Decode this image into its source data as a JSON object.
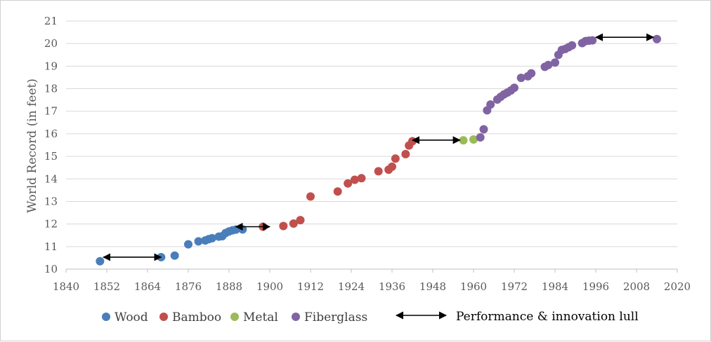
{
  "chart_data": {
    "type": "scatter",
    "title": "",
    "xlabel": "",
    "ylabel": "World Record (in feet)",
    "xlim": [
      1840,
      2020
    ],
    "ylim": [
      10,
      21
    ],
    "xticks": [
      "1840",
      "1852",
      "1864",
      "1876",
      "1888",
      "1900",
      "1912",
      "1924",
      "1936",
      "1948",
      "1960",
      "1972",
      "1984",
      "1996",
      "2008",
      "2020"
    ],
    "yticks": [
      "10",
      "11",
      "12",
      "13",
      "14",
      "15",
      "16",
      "17",
      "18",
      "19",
      "20",
      "21"
    ],
    "grid": "horizontal",
    "legend_position": "bottom",
    "series": [
      {
        "name": "Wood",
        "color": "#4a7ebb",
        "x": [
          1850,
          1868,
          1872,
          1876,
          1879,
          1881,
          1882,
          1883,
          1885,
          1886,
          1887,
          1888,
          1889,
          1890,
          1892
        ],
        "y": [
          10.35,
          10.53,
          10.6,
          11.1,
          11.23,
          11.27,
          11.33,
          11.37,
          11.44,
          11.46,
          11.6,
          11.67,
          11.72,
          11.75,
          11.76
        ]
      },
      {
        "name": "Bamboo",
        "color": "#c0504d",
        "x": [
          1898,
          1904,
          1907,
          1909,
          1912,
          1920,
          1923,
          1925,
          1927,
          1932,
          1935,
          1936,
          1937,
          1940,
          1941,
          1942
        ],
        "y": [
          11.88,
          11.91,
          12.02,
          12.17,
          13.22,
          13.44,
          13.8,
          13.96,
          14.03,
          14.34,
          14.41,
          14.54,
          14.9,
          15.1,
          15.48,
          15.67
        ]
      },
      {
        "name": "Metal",
        "color": "#9bbb59",
        "x": [
          1957,
          1960
        ],
        "y": [
          15.71,
          15.75
        ]
      },
      {
        "name": "Fiberglass",
        "color": "#8064a2",
        "x": [
          1962,
          1963,
          1964,
          1965,
          1967,
          1968,
          1969,
          1970,
          1971,
          1972,
          1974,
          1976,
          1977,
          1981,
          1982,
          1984,
          1985,
          1986,
          1987,
          1988,
          1989,
          1992,
          1993,
          1994,
          1995,
          2014
        ],
        "y": [
          15.84,
          16.2,
          17.04,
          17.3,
          17.52,
          17.64,
          17.75,
          17.83,
          17.92,
          18.04,
          18.48,
          18.55,
          18.68,
          18.97,
          19.05,
          19.16,
          19.5,
          19.72,
          19.76,
          19.84,
          19.92,
          20.02,
          20.11,
          20.13,
          20.14,
          20.2
        ]
      }
    ],
    "lulls": [
      [
        1851,
        1868
      ],
      [
        1890,
        1900
      ],
      [
        1942,
        1956
      ],
      [
        1996,
        2013
      ]
    ],
    "lull_legend_label": "Performance & innovation lull"
  }
}
